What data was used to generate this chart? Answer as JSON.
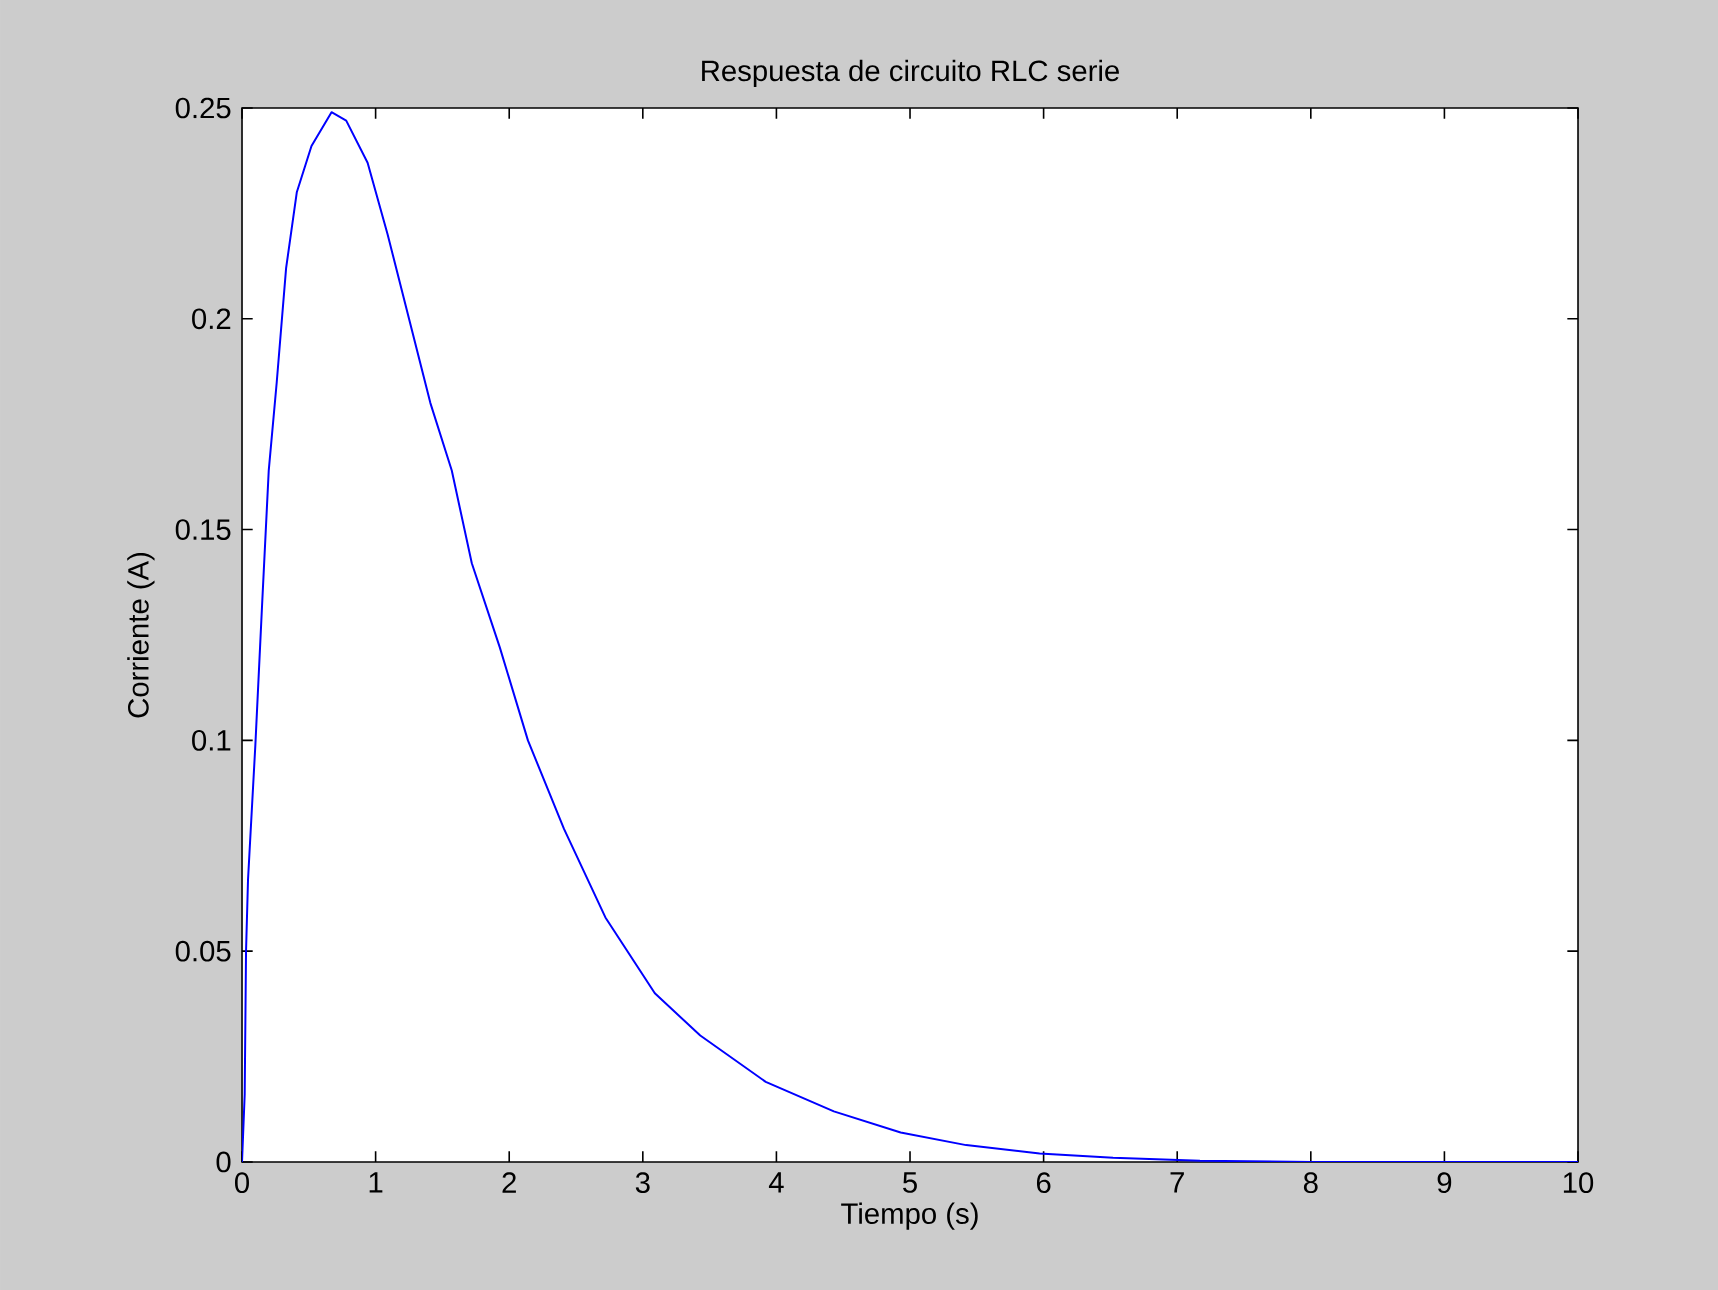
{
  "chart_data": {
    "type": "line",
    "title": "Respuesta de circuito RLC serie",
    "xlabel": "Tiempo (s)",
    "ylabel": "Corriente (A)",
    "xlim": [
      0,
      10
    ],
    "ylim": [
      0,
      0.25
    ],
    "xticks": [
      0,
      1,
      2,
      3,
      4,
      5,
      6,
      7,
      8,
      9,
      10
    ],
    "yticks": [
      0,
      0.05,
      0.1,
      0.15,
      0.2,
      0.25
    ],
    "grid": false,
    "series": [
      {
        "color": "#0000ff",
        "line_style": "solid",
        "x": [
          0,
          0.02,
          0.03,
          0.045,
          0.1,
          0.15,
          0.2,
          0.26,
          0.33,
          0.41,
          0.52,
          0.67,
          0.78,
          0.94,
          1.09,
          1.25,
          1.41,
          1.57,
          1.72,
          1.93,
          2.14,
          2.41,
          2.72,
          3.09,
          3.43,
          3.92,
          4.43,
          4.93,
          5.42,
          5.97,
          6.52,
          7.17,
          8,
          9,
          10
        ],
        "values": [
          0,
          0.016,
          0.05,
          0.067,
          0.099,
          0.132,
          0.164,
          0.185,
          0.212,
          0.23,
          0.241,
          0.249,
          0.247,
          0.237,
          0.22,
          0.2,
          0.18,
          0.164,
          0.142,
          0.122,
          0.1,
          0.079,
          0.058,
          0.04,
          0.03,
          0.019,
          0.012,
          0.007,
          0.004,
          0.002,
          0.001,
          0.0003,
          0,
          0,
          0
        ]
      }
    ]
  }
}
